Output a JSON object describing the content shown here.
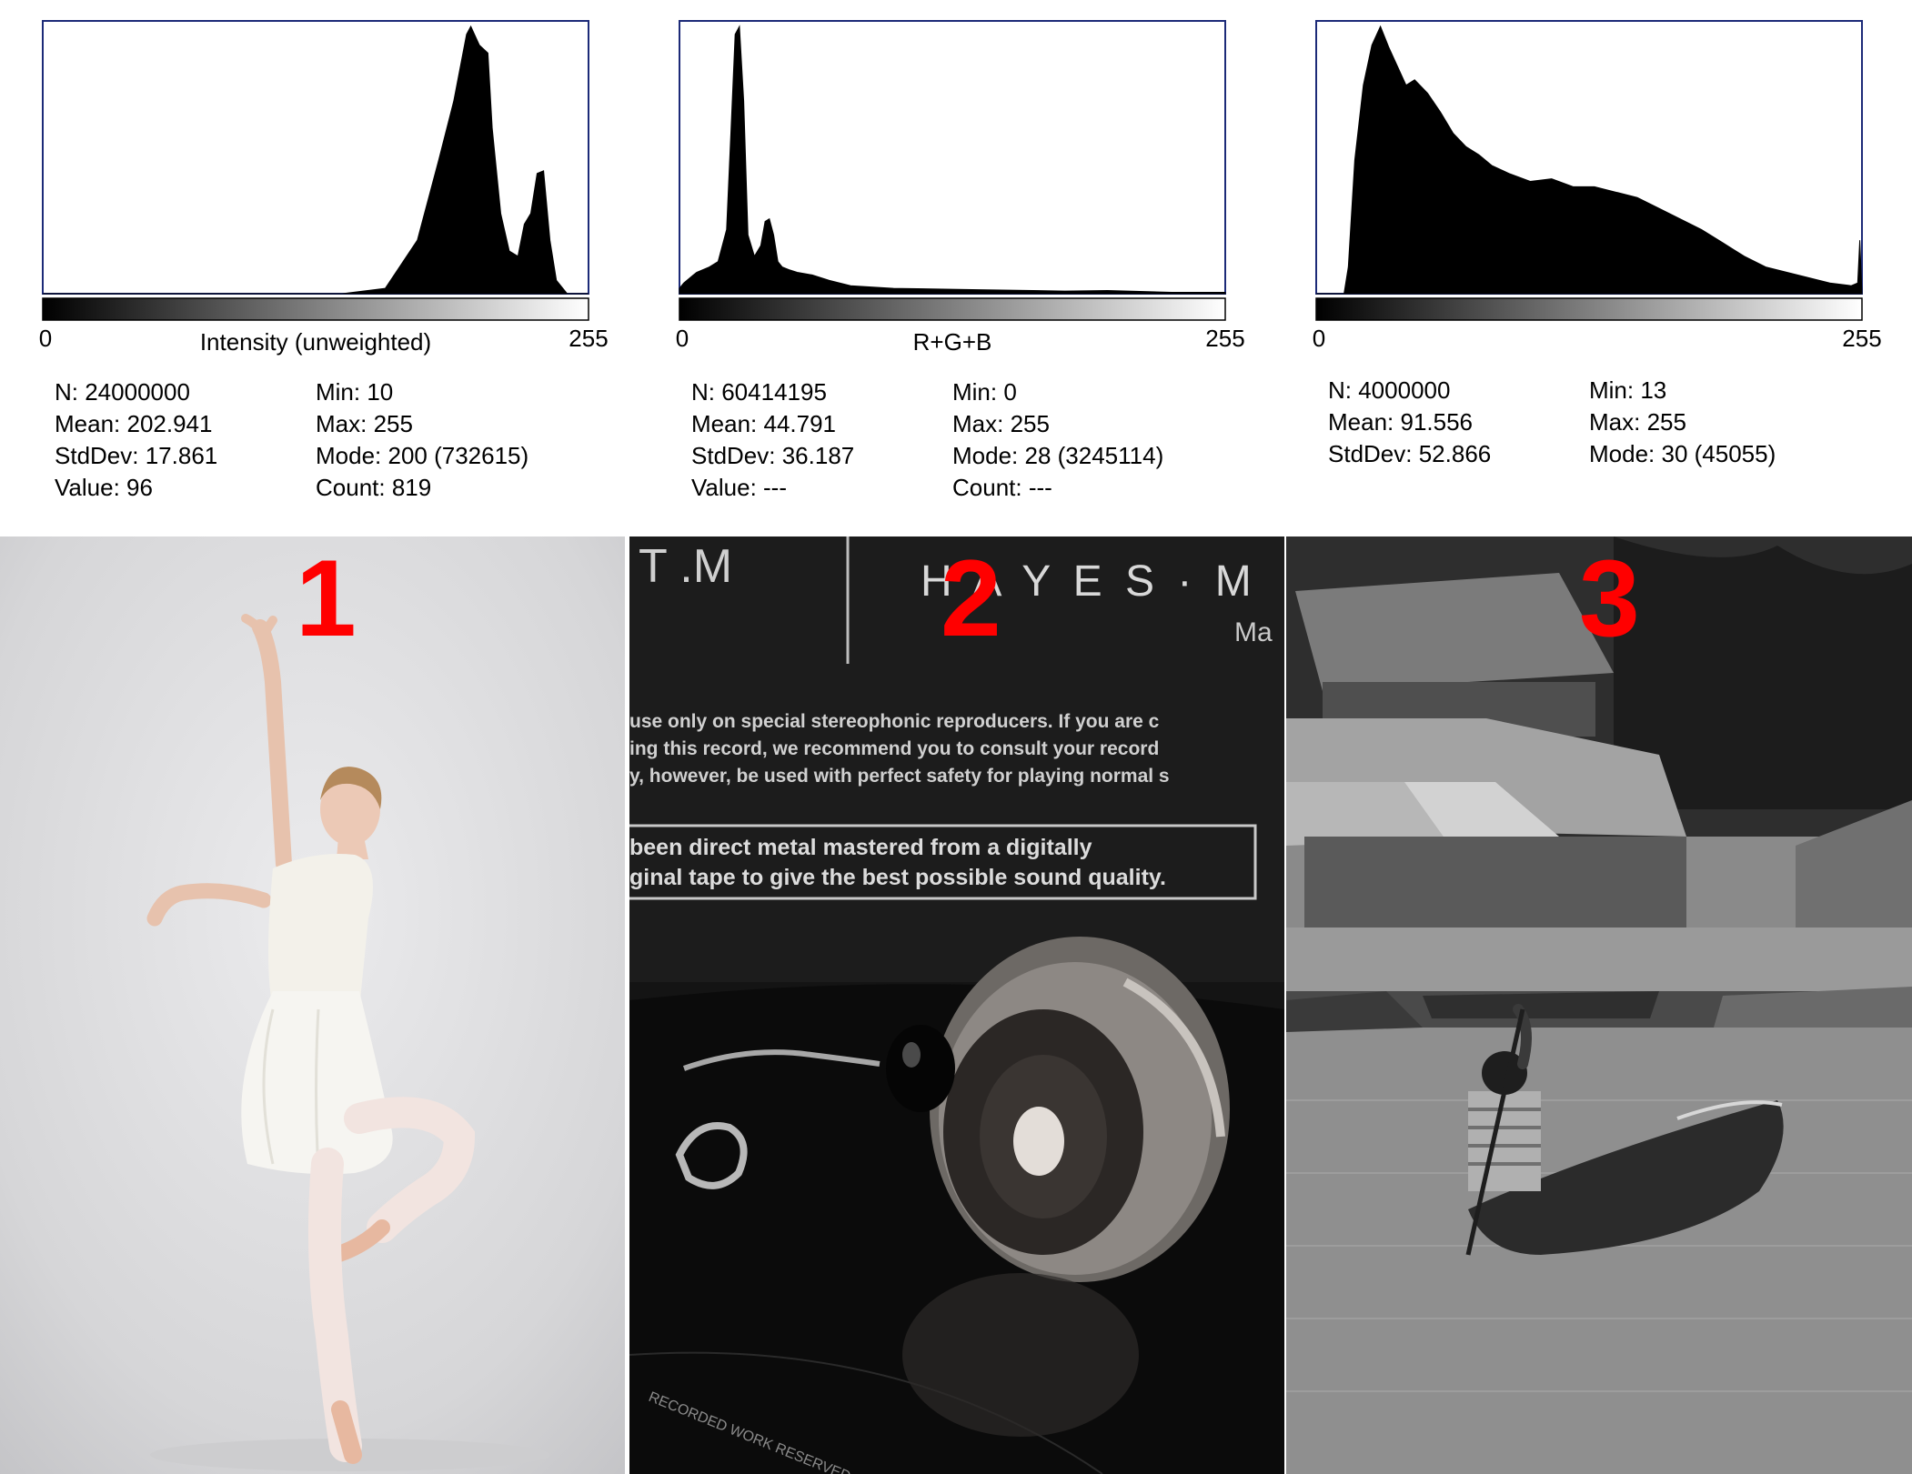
{
  "chart_data": [
    {
      "type": "area",
      "xlabel": "Intensity (unweighted)",
      "xlim": [
        0,
        255
      ],
      "x_ticks": [
        "0",
        "255"
      ],
      "series": [
        {
          "x": [
            0,
            140,
            160,
            175,
            185,
            192,
            198,
            200,
            204,
            208,
            210,
            214,
            218,
            222,
            225,
            228,
            231,
            234,
            237,
            240,
            245,
            255
          ],
          "values": [
            0,
            0,
            0.02,
            0.2,
            0.5,
            0.72,
            0.97,
            1.0,
            0.93,
            0.9,
            0.62,
            0.3,
            0.16,
            0.14,
            0.26,
            0.3,
            0.45,
            0.46,
            0.2,
            0.05,
            0,
            0
          ]
        }
      ],
      "stats": {
        "left": [
          "N: 24000000",
          "Mean: 202.941",
          "StdDev: 17.861",
          "Value: 96"
        ],
        "right": [
          "Min: 10",
          "Max: 255",
          "Mode: 200 (732615)",
          "Count: 819"
        ]
      }
    },
    {
      "type": "area",
      "xlabel": "R+G+B",
      "xlim": [
        0,
        255
      ],
      "x_ticks": [
        "0",
        "255"
      ],
      "series": [
        {
          "x": [
            0,
            2,
            8,
            14,
            18,
            22,
            24,
            26,
            28,
            30,
            32,
            35,
            38,
            40,
            42,
            44,
            46,
            48,
            51,
            55,
            62,
            70,
            80,
            100,
            140,
            180,
            200,
            230,
            255
          ],
          "values": [
            0.02,
            0.04,
            0.08,
            0.1,
            0.12,
            0.24,
            0.6,
            0.97,
            1.0,
            0.72,
            0.22,
            0.14,
            0.18,
            0.27,
            0.28,
            0.22,
            0.12,
            0.1,
            0.09,
            0.08,
            0.07,
            0.05,
            0.03,
            0.02,
            0.015,
            0.01,
            0.012,
            0.005,
            0.005
          ]
        }
      ],
      "stats": {
        "left": [
          "N: 60414195",
          "Mean: 44.791",
          "StdDev: 36.187",
          "Value: ---"
        ],
        "right": [
          "Min: 0",
          "Max: 255",
          "Mode: 28 (3245114)",
          "Count: ---"
        ]
      }
    },
    {
      "type": "area",
      "xlabel": "",
      "xlim": [
        0,
        255
      ],
      "x_ticks": [
        "0",
        "255"
      ],
      "series": [
        {
          "x": [
            0,
            13,
            15,
            18,
            22,
            26,
            30,
            34,
            38,
            42,
            46,
            52,
            58,
            64,
            70,
            76,
            82,
            90,
            100,
            110,
            120,
            130,
            140,
            150,
            160,
            170,
            180,
            190,
            200,
            210,
            220,
            230,
            240,
            250,
            253,
            254,
            255
          ],
          "values": [
            0,
            0,
            0.1,
            0.5,
            0.78,
            0.93,
            1.0,
            0.92,
            0.85,
            0.78,
            0.8,
            0.75,
            0.68,
            0.6,
            0.55,
            0.52,
            0.48,
            0.45,
            0.42,
            0.43,
            0.4,
            0.4,
            0.38,
            0.36,
            0.32,
            0.28,
            0.24,
            0.19,
            0.14,
            0.1,
            0.08,
            0.06,
            0.04,
            0.03,
            0.04,
            0.2,
            0.0
          ]
        }
      ],
      "stats": {
        "left": [
          "N: 4000000",
          "Mean: 91.556",
          "StdDev: 52.866"
        ],
        "right": [
          "Min: 13",
          "Max: 255",
          "Mode: 30 (45055)"
        ]
      }
    }
  ],
  "photos": [
    {
      "number": "1"
    },
    {
      "number": "2",
      "sleeve_text": [
        "T .M",
        "H A Y E S · M",
        "Ma",
        "use only on special stereophonic reproducers. If you are c",
        "ing this record, we recommend you to consult your record",
        "y, however, be used with perfect safety for playing normal s",
        "been direct metal mastered from a digitally",
        "ginal tape to give the best possible sound quality.",
        "RECORDED WORK RESERVED. UNAUTHORISED"
      ]
    },
    {
      "number": "3"
    }
  ]
}
